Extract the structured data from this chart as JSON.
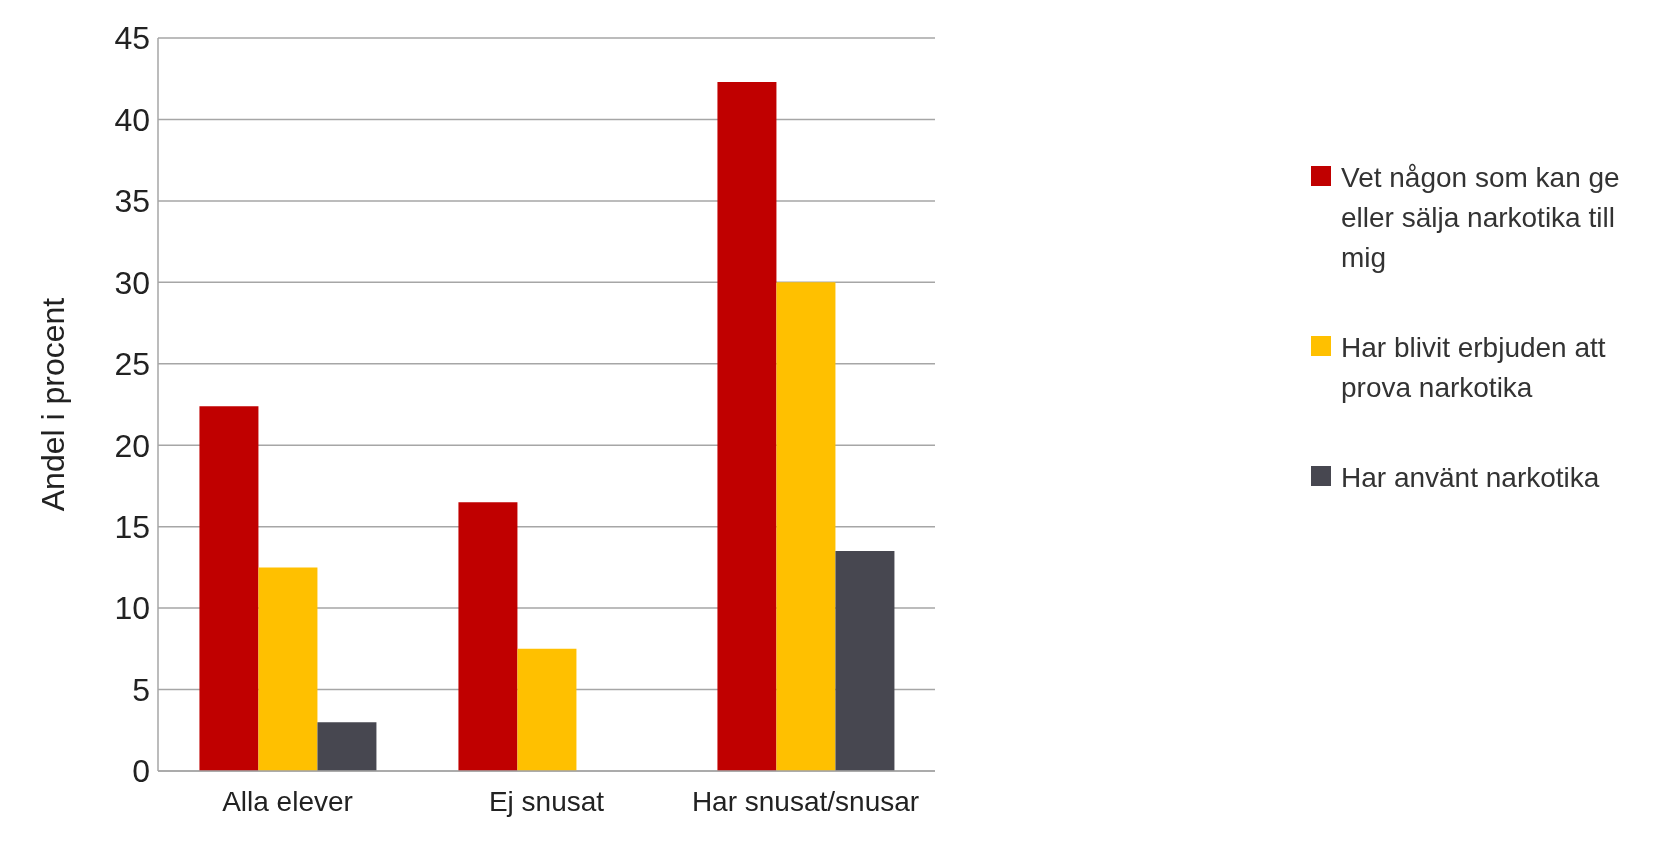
{
  "chart_data": {
    "type": "bar",
    "ylabel": "Andel i procent",
    "categories": [
      "Alla elever",
      "Ej snusat",
      "Har snusat/snusar"
    ],
    "series": [
      {
        "name": "Vet någon som kan ge eller sälja narkotika till mig",
        "color": "#c00000",
        "values": [
          22.4,
          16.5,
          42.3
        ]
      },
      {
        "name": "Har blivit erbjuden att prova narkotika",
        "color": "#ffc000",
        "values": [
          12.5,
          7.5,
          30.0
        ]
      },
      {
        "name": "Har använt narkotika",
        "color": "#474750",
        "values": [
          3.0,
          null,
          13.5
        ]
      }
    ],
    "ylim": [
      0,
      45
    ],
    "yticks": [
      0,
      5,
      10,
      15,
      20,
      25,
      30,
      35,
      40,
      45
    ],
    "grid": "y",
    "legend": "right"
  }
}
